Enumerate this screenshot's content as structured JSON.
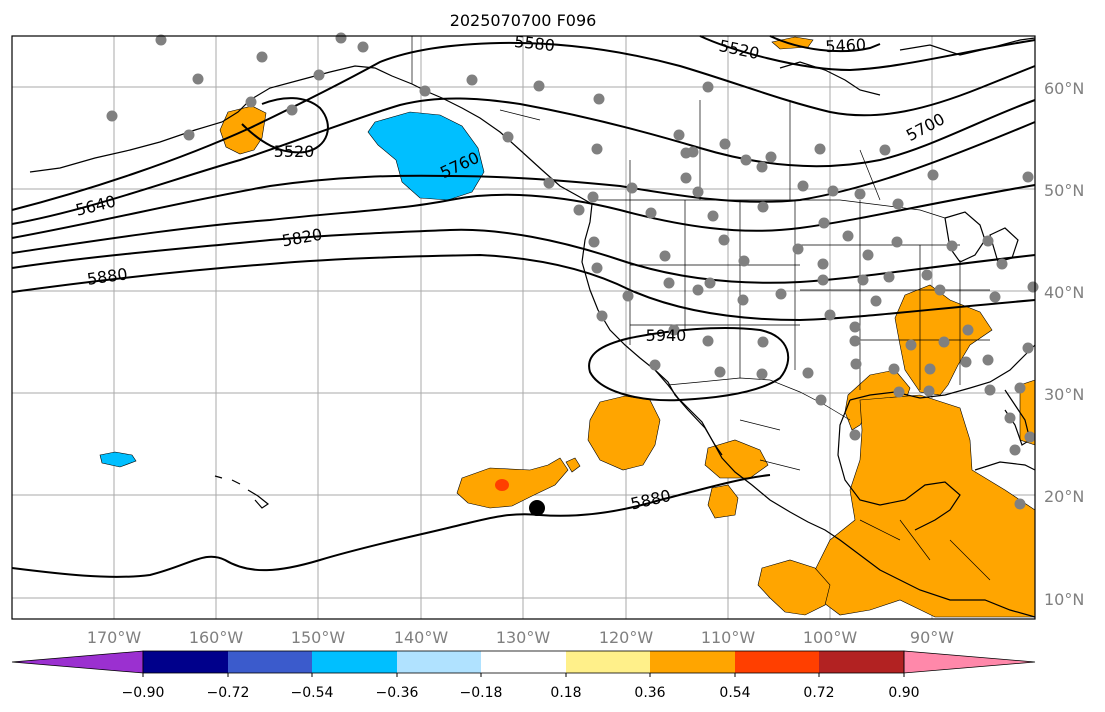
{
  "title": "2025070700 F096",
  "map": {
    "lon_labels": [
      "170°W",
      "160°W",
      "150°W",
      "140°W",
      "130°W",
      "120°W",
      "110°W",
      "100°W",
      "90°W"
    ],
    "lat_labels": [
      "60°N",
      "50°N",
      "40°N",
      "30°N",
      "20°N",
      "10°N"
    ],
    "contour_labels": [
      "5580",
      "5520",
      "5460",
      "5520",
      "5700",
      "5760",
      "5640",
      "5820",
      "5880",
      "5940",
      "5880"
    ]
  },
  "colorbar": {
    "tick_labels": [
      "−0.90",
      "−0.72",
      "−0.54",
      "−0.36",
      "−0.18",
      "0.18",
      "0.36",
      "0.54",
      "0.72",
      "0.90"
    ],
    "colors": [
      "#9b30d0",
      "#00008b",
      "#3b5bcc",
      "#00bfff",
      "#b0e2ff",
      "#ffffff",
      "#fff08a",
      "#ffa500",
      "#ff3f00",
      "#b22222",
      "#ff88aa"
    ]
  },
  "colors": {
    "grid": "#aaaaaa",
    "station": "#808080",
    "positive_anomaly": "#ffa500",
    "strong_positive": "#ff3f00",
    "negative_anomaly": "#00bfff"
  }
}
